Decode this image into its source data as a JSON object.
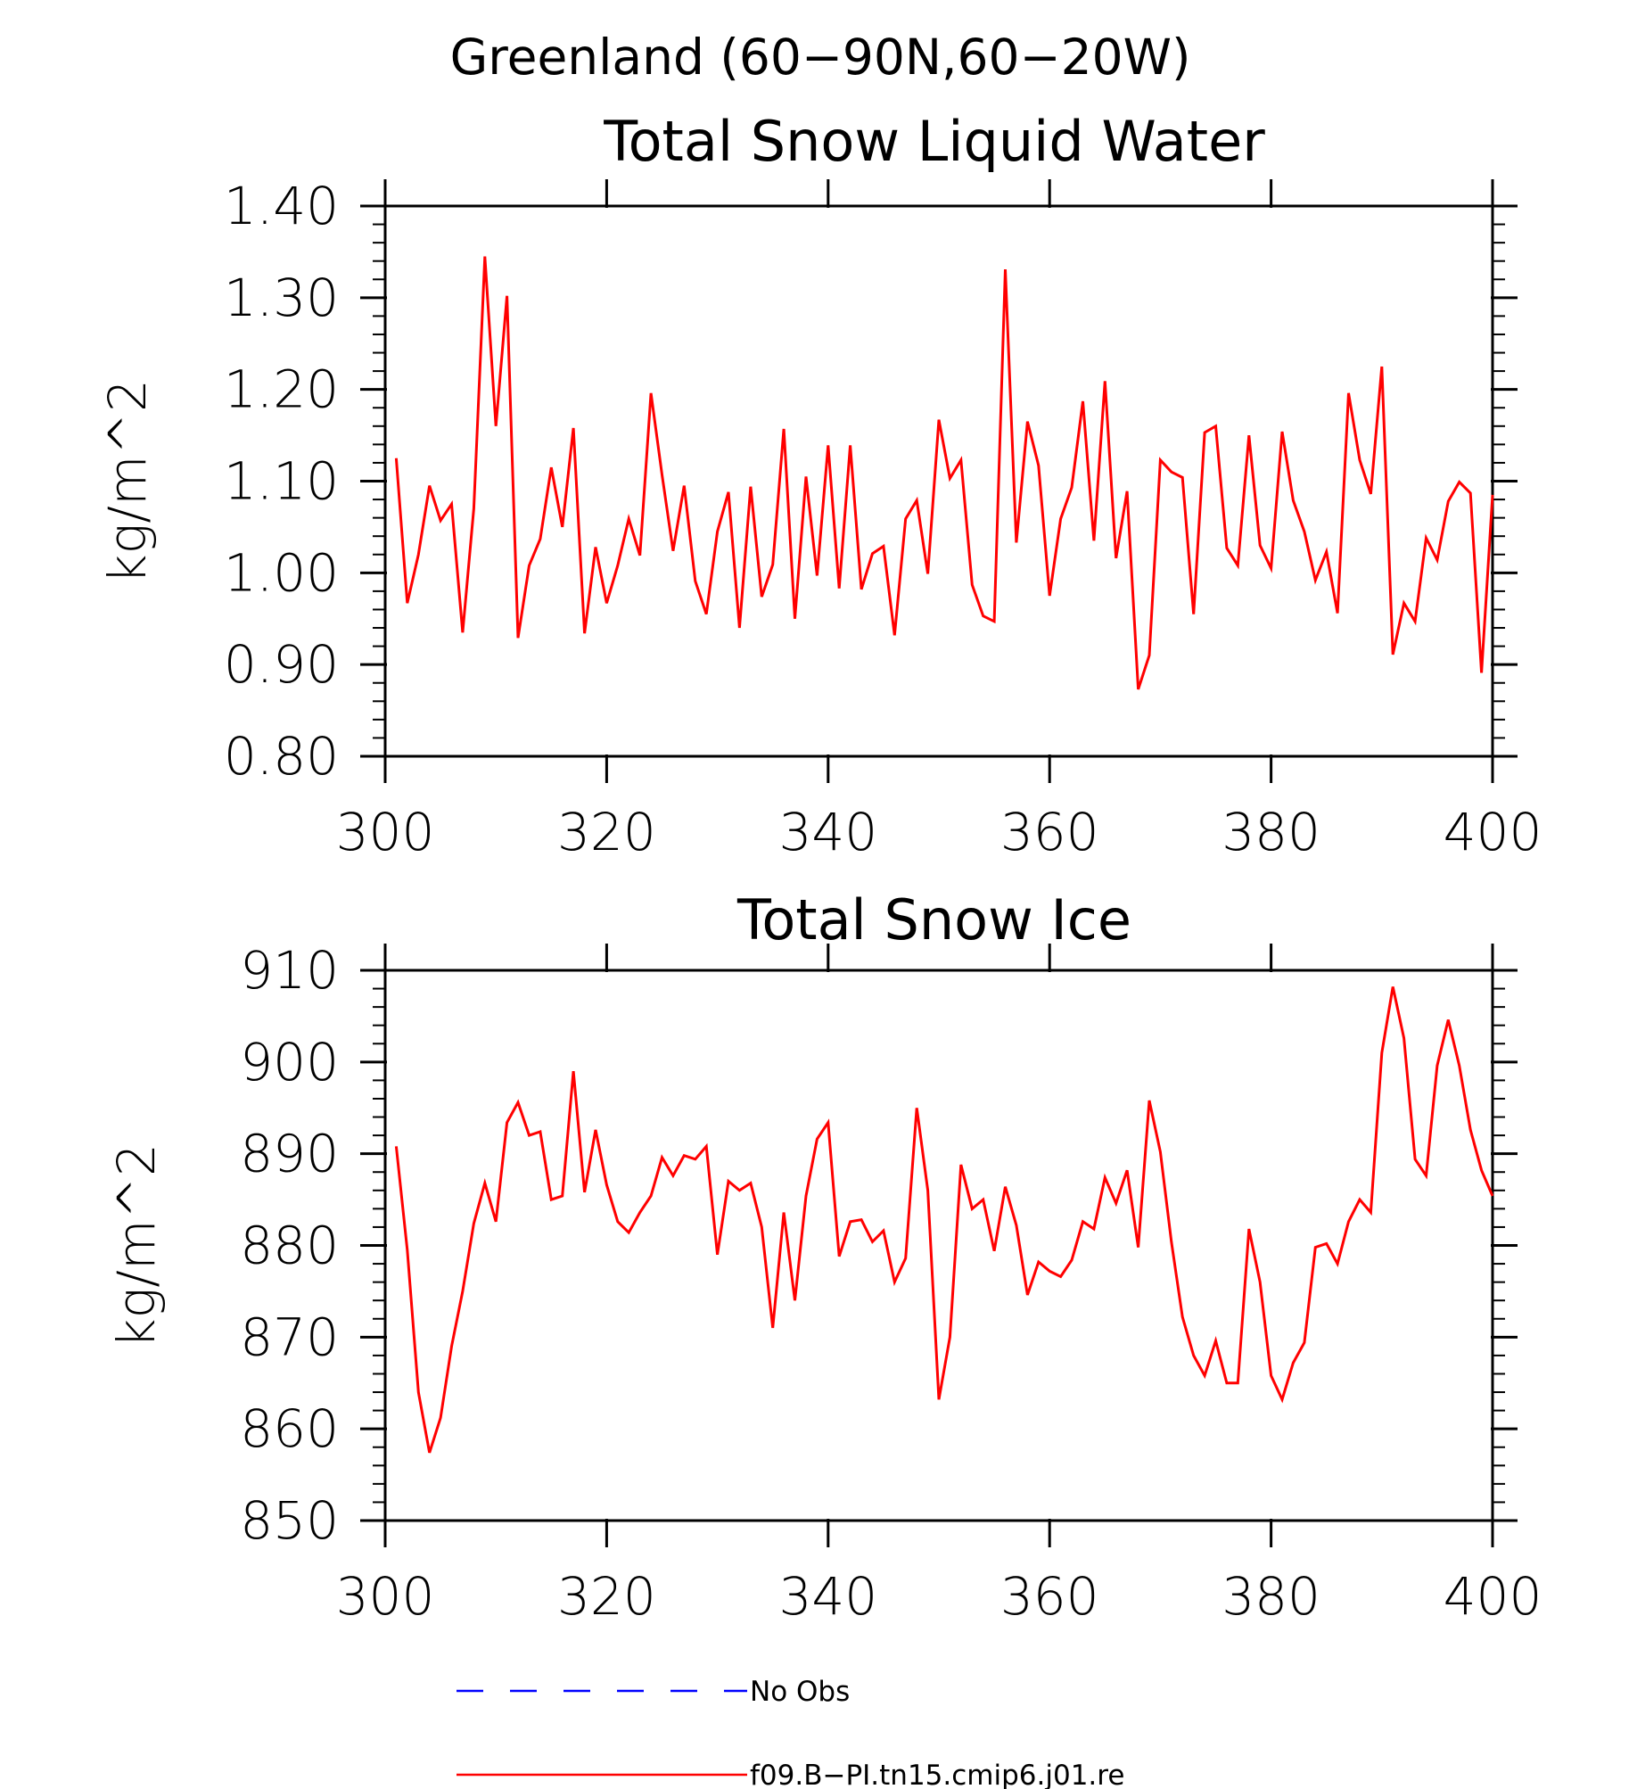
{
  "figure": {
    "title": "Greenland (60−90N,60−20W)"
  },
  "chart_data": [
    {
      "type": "line",
      "title": "Total Snow Liquid Water",
      "xlabel": "",
      "ylabel": "kg/m^2",
      "xlim": [
        300,
        400
      ],
      "ylim": [
        0.8,
        1.4
      ],
      "x_ticks": [
        300,
        320,
        340,
        360,
        380,
        400
      ],
      "x_tick_labels": [
        "300",
        "320",
        "340",
        "360",
        "380",
        "400"
      ],
      "y_ticks": [
        0.8,
        0.9,
        1.0,
        1.1,
        1.2,
        1.3,
        1.4
      ],
      "y_tick_labels": [
        "0.80",
        "0.90",
        "1.00",
        "1.10",
        "1.20",
        "1.30",
        "1.40"
      ],
      "grid": false,
      "series": [
        {
          "name": "f09.B−PI.tn15.cmip6.j01.re",
          "color": "#ff0000",
          "x_start": 301,
          "x_step": 1,
          "values": [
            1.125,
            0.967,
            1.02,
            1.095,
            1.057,
            1.075,
            0.935,
            1.07,
            1.345,
            1.16,
            1.302,
            0.929,
            1.008,
            1.037,
            1.115,
            1.05,
            1.158,
            0.934,
            1.028,
            0.967,
            1.008,
            1.059,
            1.019,
            1.196,
            1.107,
            1.024,
            1.095,
            0.991,
            0.955,
            1.045,
            1.088,
            0.94,
            1.094,
            0.974,
            1.009,
            1.157,
            0.95,
            1.105,
            0.997,
            1.139,
            0.983,
            1.139,
            0.982,
            1.021,
            1.029,
            0.932,
            1.059,
            1.079,
            0.999,
            1.167,
            1.103,
            1.123,
            0.987,
            0.953,
            0.947,
            1.331,
            1.033,
            1.165,
            1.117,
            0.975,
            1.059,
            1.093,
            1.187,
            1.035,
            1.209,
            1.016,
            1.089,
            0.873,
            0.91,
            1.123,
            1.11,
            1.104,
            0.955,
            1.153,
            1.16,
            1.027,
            1.008,
            1.15,
            1.03,
            1.005,
            1.154,
            1.079,
            1.045,
            0.992,
            1.023,
            0.956,
            1.196,
            1.123,
            1.086,
            1.225,
            0.911,
            0.967,
            0.947,
            1.038,
            1.014,
            1.078,
            1.099,
            1.087,
            0.891,
            1.085
          ]
        }
      ]
    },
    {
      "type": "line",
      "title": "Total Snow Ice",
      "xlabel": "",
      "ylabel": "kg/m^2",
      "xlim": [
        300,
        400
      ],
      "ylim": [
        850,
        910
      ],
      "x_ticks": [
        300,
        320,
        340,
        360,
        380,
        400
      ],
      "x_tick_labels": [
        "300",
        "320",
        "340",
        "360",
        "380",
        "400"
      ],
      "y_ticks": [
        850,
        860,
        870,
        880,
        890,
        900,
        910
      ],
      "y_tick_labels": [
        "850",
        "860",
        "870",
        "880",
        "890",
        "900",
        "910"
      ],
      "grid": false,
      "series": [
        {
          "name": "f09.B−PI.tn15.cmip6.j01.re",
          "color": "#ff0000",
          "x_start": 301,
          "x_step": 1,
          "values": [
            890.8,
            879.5,
            864.0,
            857.4,
            861.2,
            869.0,
            875.0,
            882.4,
            886.8,
            882.6,
            893.4,
            895.6,
            892.0,
            892.4,
            885.0,
            885.4,
            899.0,
            885.8,
            892.6,
            886.6,
            882.6,
            881.4,
            883.6,
            885.4,
            889.6,
            887.6,
            889.8,
            889.4,
            890.8,
            879.0,
            887.0,
            886.0,
            886.8,
            882.0,
            871.0,
            883.6,
            874.0,
            885.4,
            891.6,
            893.4,
            878.8,
            882.6,
            882.8,
            880.4,
            881.6,
            876.0,
            878.6,
            895.0,
            886.0,
            863.2,
            870.0,
            888.8,
            884.0,
            885.0,
            879.4,
            886.4,
            882.2,
            874.6,
            878.2,
            877.2,
            876.6,
            878.4,
            882.6,
            881.8,
            887.4,
            884.6,
            888.2,
            879.8,
            895.8,
            890.2,
            880.4,
            872.2,
            868.0,
            865.8,
            869.6,
            865.0,
            865.0,
            881.8,
            876.0,
            865.8,
            863.2,
            867.2,
            869.4,
            879.8,
            880.2,
            878.0,
            882.6,
            885.0,
            883.6,
            901.0,
            908.2,
            902.6,
            889.4,
            887.6,
            899.6,
            904.6,
            899.6,
            892.6,
            888.2,
            885.4
          ]
        }
      ]
    }
  ],
  "legend": {
    "placement": "bottom-center",
    "items": [
      {
        "label": "No Obs",
        "color": "#0000ff",
        "style": "dashed"
      },
      {
        "label": "f09.B−PI.tn15.cmip6.j01.re",
        "color": "#ff0000",
        "style": "solid"
      }
    ]
  }
}
